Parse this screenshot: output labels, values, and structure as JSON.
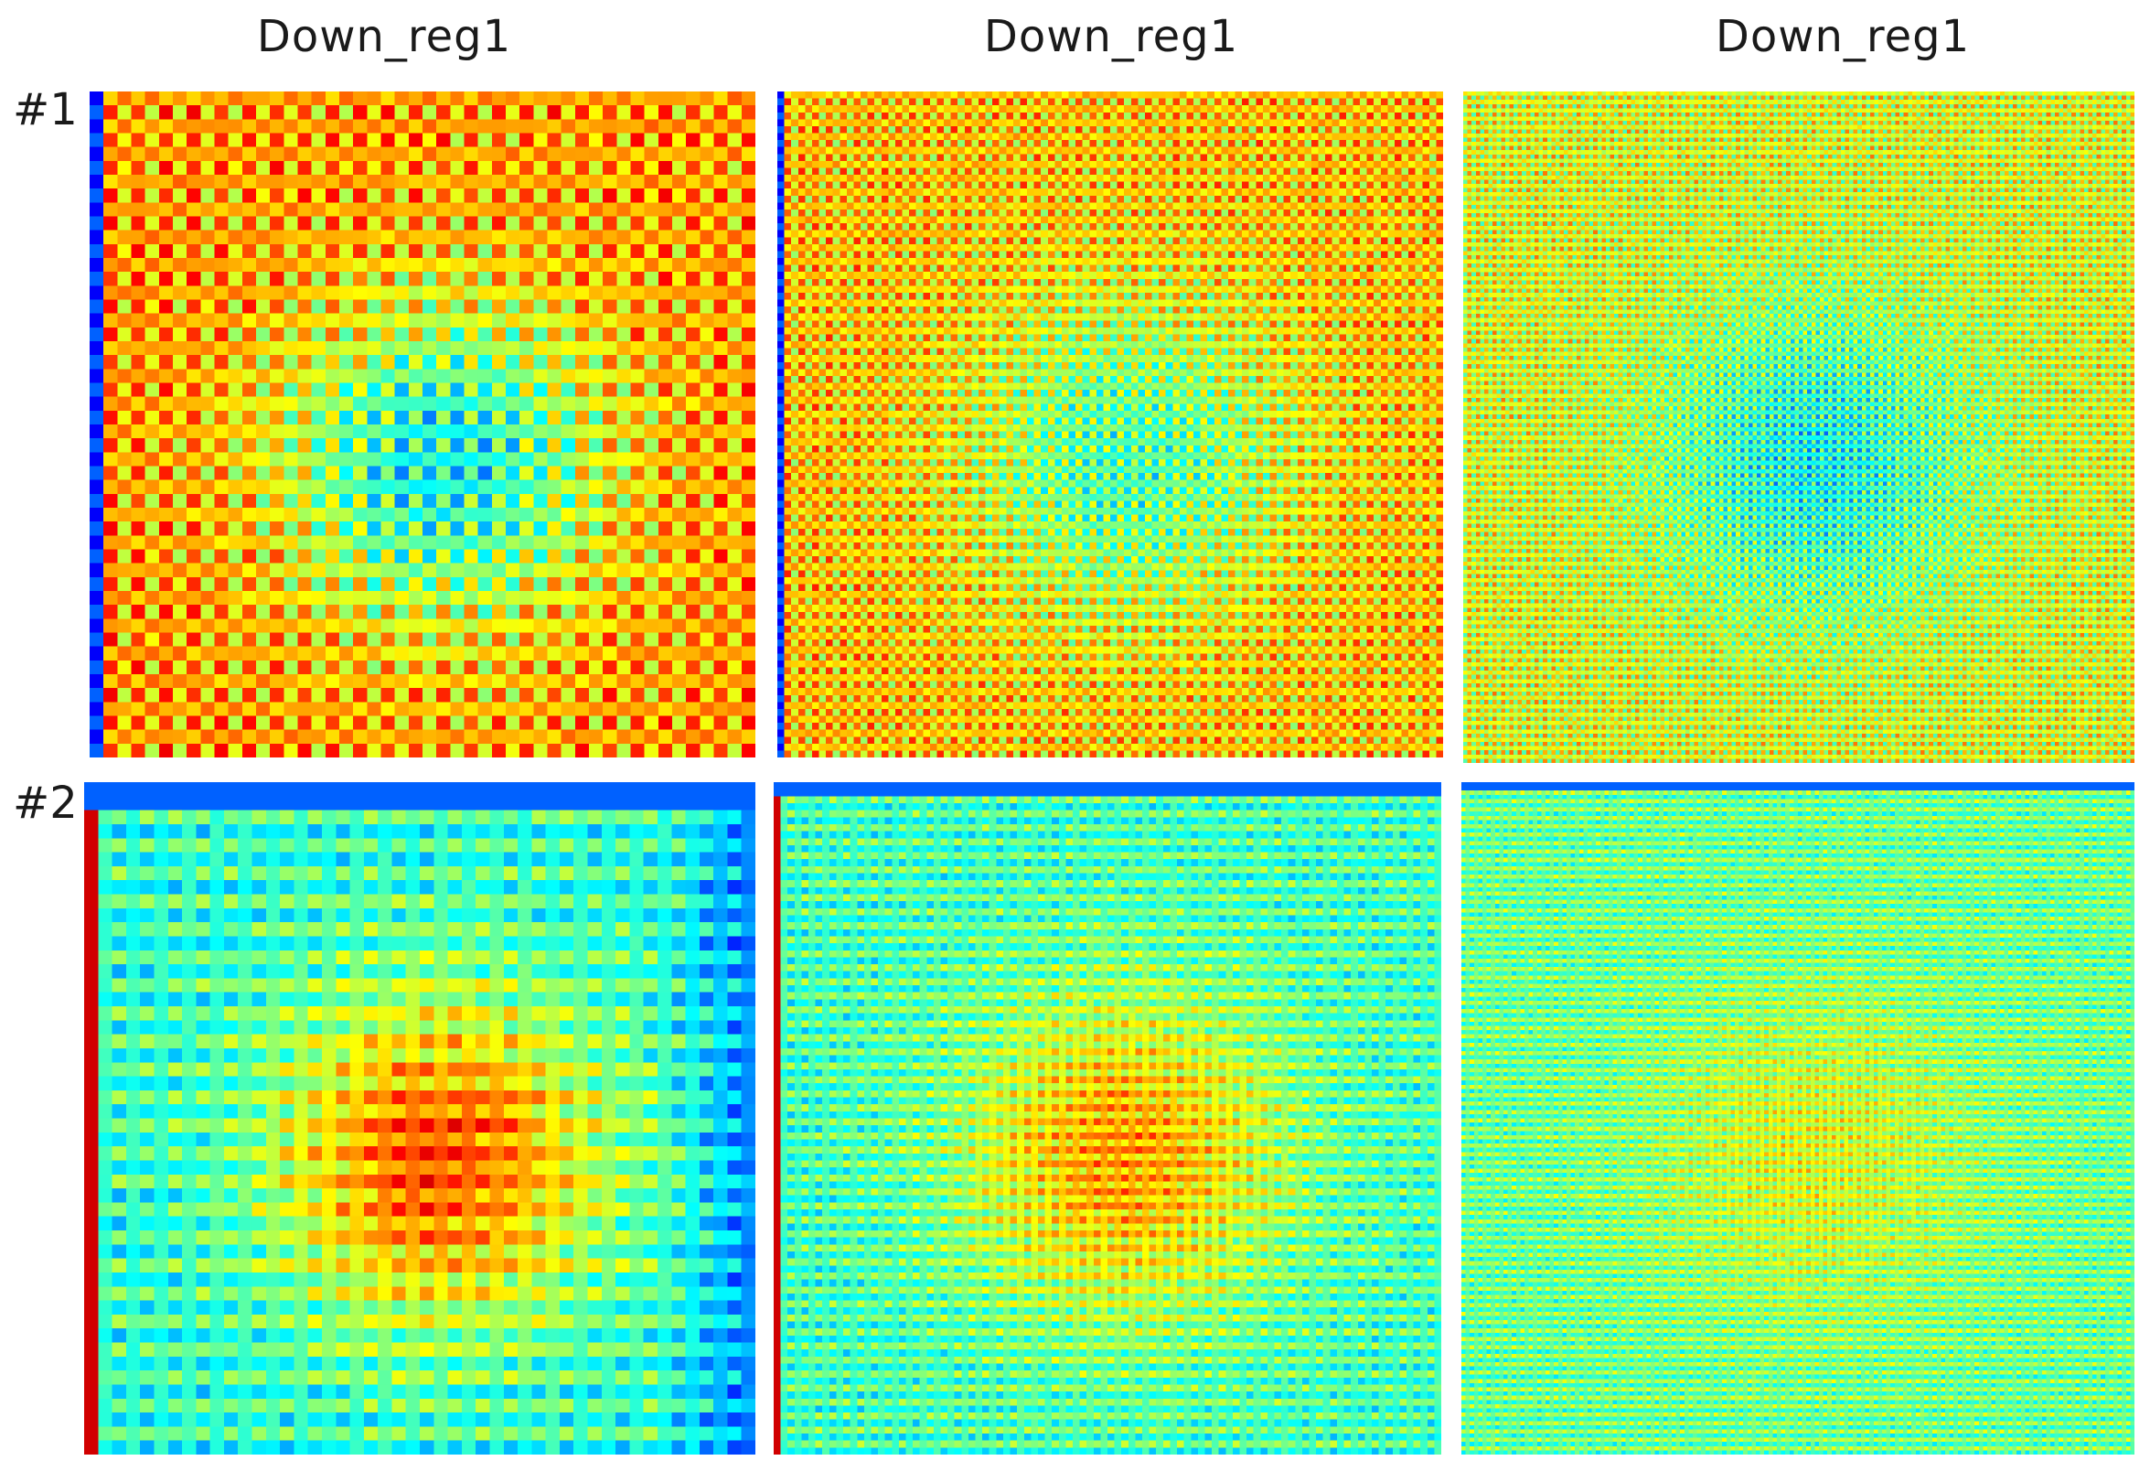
{
  "chart_data": {
    "type": "heatmap",
    "colormap": "jet",
    "grid": false,
    "legend": "none",
    "column_titles": [
      "Down_reg1",
      "Down_reg1",
      "Down_reg1"
    ],
    "row_labels": [
      "#1",
      "#2"
    ],
    "panels": [
      {
        "row": "#1",
        "title": "Down_reg1",
        "grid_size": 48,
        "pattern": "hot-background-cold-center-blob",
        "base_value": 0.72,
        "center_value": 0.38,
        "cold_left_edge": true
      },
      {
        "row": "#1",
        "title": "Down_reg1",
        "grid_size": 96,
        "pattern": "hot-background-cold-center-blob",
        "base_value": 0.68,
        "center_value": 0.45,
        "cold_left_edge": true
      },
      {
        "row": "#1",
        "title": "Down_reg1",
        "grid_size": 160,
        "pattern": "warm-background-cold-center-blob",
        "base_value": 0.6,
        "center_value": 0.38,
        "cold_left_edge": false
      },
      {
        "row": "#2",
        "title": "Down_reg1",
        "grid_size": 48,
        "pattern": "cool-background-hot-center-blob",
        "base_value": 0.42,
        "center_value": 0.8,
        "hot_left_edge": true,
        "cold_right_edge": true
      },
      {
        "row": "#2",
        "title": "Down_reg1",
        "grid_size": 96,
        "pattern": "cool-background-hot-center-blob",
        "base_value": 0.44,
        "center_value": 0.72,
        "hot_left_edge": true,
        "cold_right_edge": false
      },
      {
        "row": "#2",
        "title": "Down_reg1",
        "grid_size": 160,
        "pattern": "cool-background-warm-center-blob",
        "base_value": 0.48,
        "center_value": 0.6,
        "hot_left_edge": false,
        "cold_right_edge": false
      }
    ]
  }
}
